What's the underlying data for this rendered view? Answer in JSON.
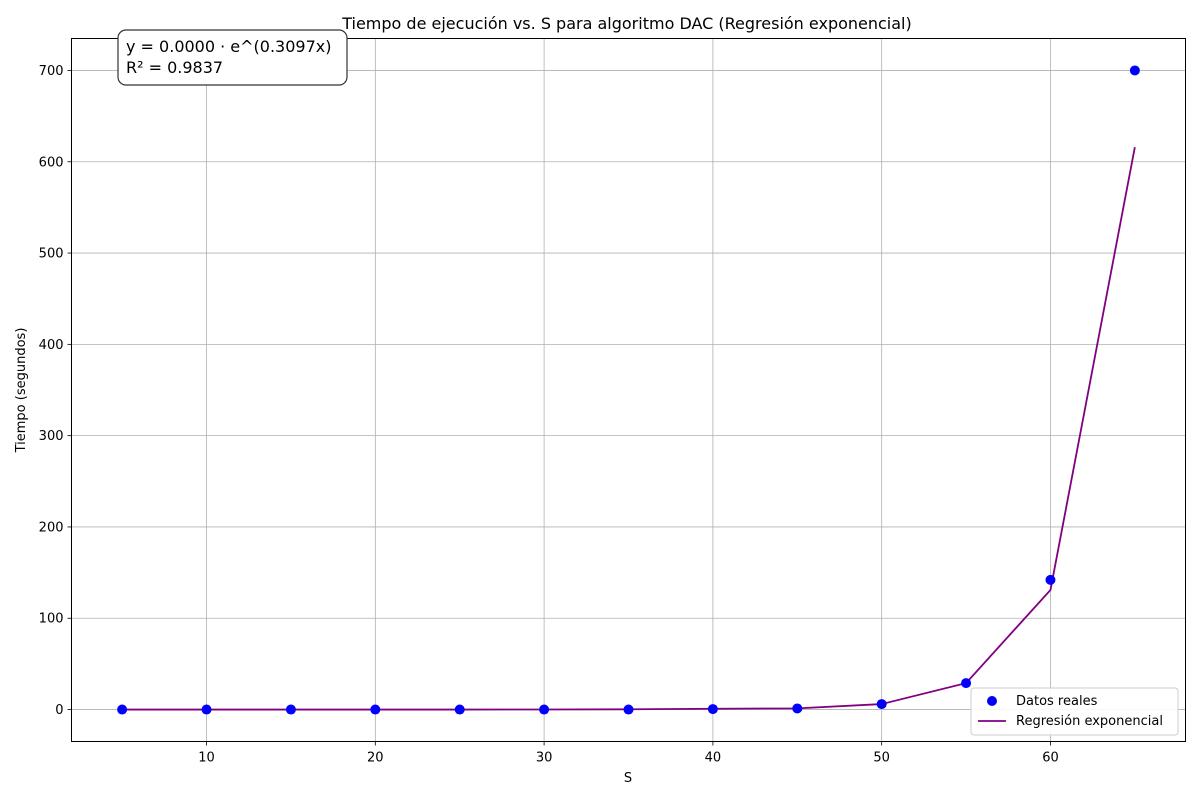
{
  "chart_data": {
    "type": "scatter",
    "title": "Tiempo de ejecución vs. S para algoritmo DAC (Regresión exponencial)",
    "xlabel": "S",
    "ylabel": "Tiempo (segundos)",
    "xlim": [
      2,
      68
    ],
    "ylim": [
      -35,
      735
    ],
    "xticks": [
      10,
      20,
      30,
      40,
      50,
      60
    ],
    "yticks": [
      0,
      100,
      200,
      300,
      400,
      500,
      600,
      700
    ],
    "grid": true,
    "legend_position": "bottom-right",
    "series": [
      {
        "name": "Datos reales",
        "kind": "scatter",
        "color": "#0000ff",
        "x": [
          5,
          10,
          15,
          20,
          25,
          30,
          35,
          40,
          45,
          50,
          55,
          60,
          65
        ],
        "y": [
          0,
          0,
          0,
          0,
          0,
          0,
          0,
          0.5,
          1.2,
          6,
          29,
          142,
          700
        ]
      },
      {
        "name": "Regresión exponencial",
        "kind": "line",
        "color": "#800080",
        "x": [
          5,
          10,
          15,
          20,
          25,
          30,
          35,
          40,
          45,
          50,
          55,
          60,
          65
        ],
        "y": [
          0,
          0,
          0,
          0,
          0.01,
          0.05,
          0.25,
          0.9,
          1.3,
          6,
          29,
          131,
          616
        ]
      }
    ],
    "annotation": {
      "line1": "y = 0.0000 · e^(0.3097x)",
      "line2": "R² = 0.9837"
    }
  }
}
